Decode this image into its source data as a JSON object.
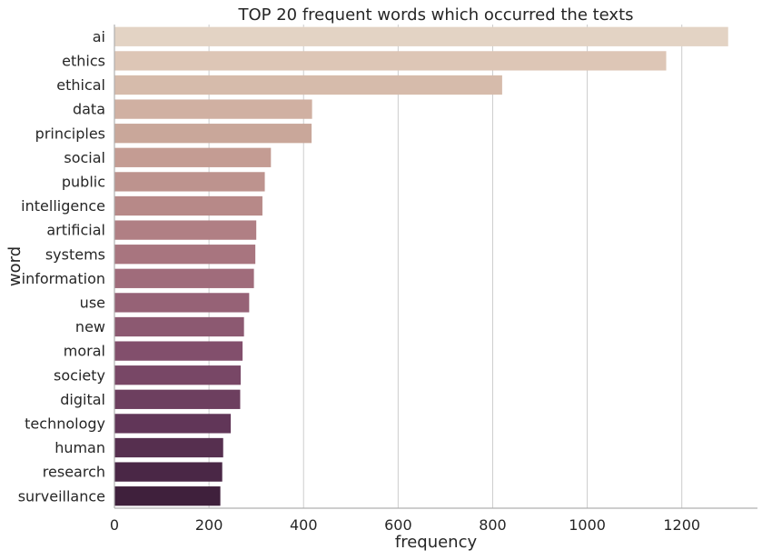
{
  "chart_data": {
    "type": "bar",
    "orientation": "horizontal",
    "title": "TOP 20 frequent words which occurred the texts",
    "xlabel": "frequency",
    "ylabel": "word",
    "xlim": [
      0,
      1360
    ],
    "xticks": [
      0,
      200,
      400,
      600,
      800,
      1000,
      1200
    ],
    "grid": "vertical",
    "categories": [
      "ai",
      "ethics",
      "ethical",
      "data",
      "principles",
      "social",
      "public",
      "intelligence",
      "artificial",
      "systems",
      "information",
      "use",
      "new",
      "moral",
      "society",
      "digital",
      "technology",
      "human",
      "research",
      "surveillance"
    ],
    "values": [
      1298,
      1167,
      820,
      418,
      417,
      331,
      318,
      313,
      300,
      298,
      295,
      285,
      274,
      271,
      267,
      266,
      246,
      230,
      228,
      224
    ],
    "colors": [
      "#e3d3c4",
      "#ddc6b6",
      "#d6bbab",
      "#d0b0a2",
      "#c9a79a",
      "#c49c93",
      "#bd938e",
      "#b78988",
      "#b07f84",
      "#a8757f",
      "#a06c7b",
      "#966276",
      "#8c5971",
      "#824f6c",
      "#784766",
      "#6d3f5f",
      "#613658",
      "#562f4f",
      "#4a2746",
      "#3f203c"
    ]
  }
}
